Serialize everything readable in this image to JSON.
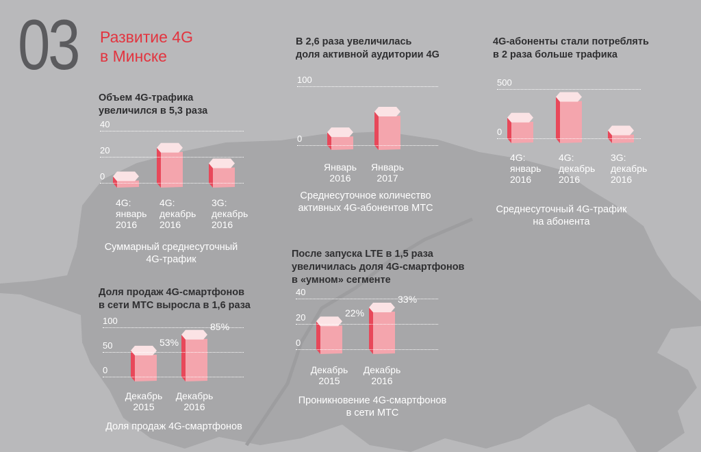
{
  "section": {
    "number": "03",
    "title_line1": "Развитие 4G",
    "title_line2": "в Минске"
  },
  "colors": {
    "accent": "#e2343f",
    "bar_top": "#fbe3e5",
    "bar_left": "#e8485a",
    "bar_right": "#f4a5ad",
    "map": "#a7a7a9",
    "background": "#b9b9bb"
  },
  "panels": {
    "traffic": {
      "headline_line1": "Объем 4G-трафика",
      "headline_line2": "увеличился в 5,3 раза",
      "caption_line1": "Суммарный среднесуточный",
      "caption_line2": "4G-трафик",
      "ticks": [
        "40",
        "20",
        "0"
      ]
    },
    "audience": {
      "headline_line1": "В 2,6 раза увеличилась",
      "headline_line2": "доля активной аудитории 4G",
      "caption_line1": "Среднесуточное количество",
      "caption_line2": "активных 4G-абонентов МТС",
      "ticks": [
        "100",
        "0"
      ]
    },
    "per_subscriber": {
      "headline_line1": "4G-абоненты стали потреблять",
      "headline_line2": "в 2 раза больше трафика",
      "caption_line1": "Среднесуточный 4G-трафик",
      "caption_line2": "на абонента",
      "ticks": [
        "500",
        "0"
      ]
    },
    "sales": {
      "headline_line1": "Доля продаж 4G-смартфонов",
      "headline_line2": "в сети МТС выросла в 1,6 раза",
      "caption_line1": "Доля продаж 4G-смартфонов",
      "ticks": [
        "100",
        "50",
        "0"
      ]
    },
    "penetration": {
      "headline_line1": "После запуска LTE в 1,5 раза",
      "headline_line2": "увеличилась доля 4G-смартфонов",
      "headline_line3": "в «умном» сегменте",
      "caption_line1": "Проникновение 4G-смартфонов",
      "caption_line2": "в сети МТС",
      "ticks": [
        "40",
        "20",
        "0"
      ]
    }
  },
  "chart_data": [
    {
      "id": "traffic",
      "type": "bar",
      "categories": [
        "4G: январь 2016",
        "4G: декабрь 2016",
        "3G: декабрь 2016"
      ],
      "values": [
        5,
        27,
        15
      ],
      "ylim": [
        0,
        40
      ],
      "grid": true
    },
    {
      "id": "audience",
      "type": "bar",
      "categories": [
        "Январь 2016",
        "Январь 2017"
      ],
      "values": [
        22,
        57
      ],
      "ylim": [
        0,
        100
      ],
      "grid": true
    },
    {
      "id": "per_subscriber",
      "type": "bar",
      "categories": [
        "4G: январь 2016",
        "4G: декабрь 2016",
        "3G: декабрь 2016"
      ],
      "values": [
        210,
        420,
        80
      ],
      "ylim": [
        0,
        500
      ],
      "grid": true
    },
    {
      "id": "sales",
      "type": "bar",
      "categories": [
        "Декабрь 2015",
        "Декабрь 2016"
      ],
      "values": [
        53,
        85
      ],
      "data_labels": [
        "53%",
        "85%"
      ],
      "ylim": [
        0,
        100
      ],
      "grid": true
    },
    {
      "id": "penetration",
      "type": "bar",
      "categories": [
        "Декабрь 2015",
        "Декабрь 2016"
      ],
      "values": [
        22,
        33
      ],
      "data_labels": [
        "22%",
        "33%"
      ],
      "ylim": [
        0,
        40
      ],
      "grid": true
    }
  ]
}
